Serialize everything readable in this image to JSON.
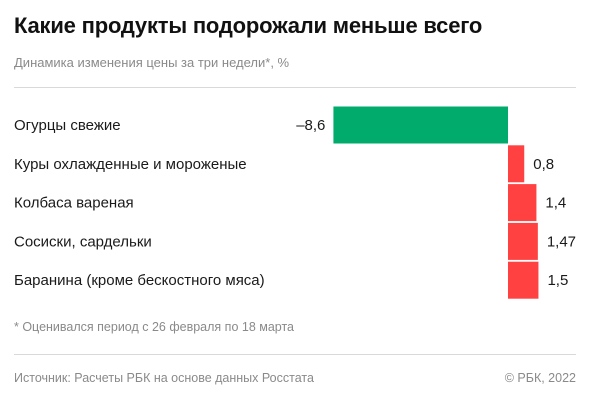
{
  "header": {
    "title": "Какие продукты подорожали меньше всего",
    "subtitle": "Динамика изменения цены за три недели*, %"
  },
  "footer": {
    "footnote": "* Оценивался период с 26 февраля по 18 марта",
    "source": "Источник: Расчеты РБК на основе данных Росстата",
    "copyright": "© РБК, 2022"
  },
  "colors": {
    "negative": "#00ab6c",
    "positive": "#ff4141"
  },
  "chart_data": {
    "type": "bar",
    "orientation": "horizontal",
    "categories": [
      "Огурцы свежие",
      "Куры охлажденные и мороженые",
      "Колбаса вареная",
      "Сосиски, сардельки",
      "Баранина (кроме бескостного мяса)"
    ],
    "values": [
      -8.6,
      0.8,
      1.4,
      1.47,
      1.5
    ],
    "value_labels": [
      "–8,6",
      "0,8",
      "1,4",
      "1,47",
      "1,5"
    ],
    "title": "Какие продукты подорожали меньше всего",
    "subtitle": "Динамика изменения цены за три недели*, %",
    "xlabel": "",
    "ylabel": "",
    "grid": false,
    "legend": "none"
  }
}
